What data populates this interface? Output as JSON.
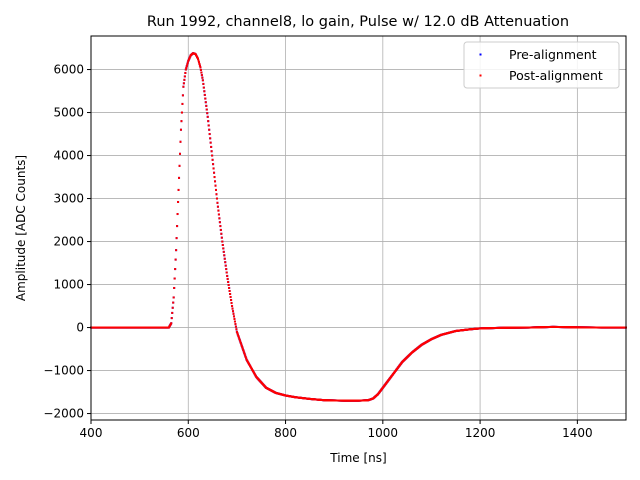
{
  "chart_data": {
    "type": "scatter",
    "title": "Run 1992, channel8, lo gain, Pulse w/ 12.0 dB Attenuation",
    "xlabel": "Time [ns]",
    "ylabel": "Amplitude [ADC Counts]",
    "xlim": [
      400,
      1500
    ],
    "ylim": [
      -2150,
      6780
    ],
    "xticks": [
      400,
      600,
      800,
      1000,
      1200,
      1400
    ],
    "yticks": [
      -2000,
      -1000,
      0,
      1000,
      2000,
      3000,
      4000,
      5000,
      6000
    ],
    "grid": true,
    "legend_position": "top-right",
    "colors": {
      "pre": "#0000ff",
      "post": "#ff0000"
    },
    "series": [
      {
        "name": "Pre-alignment",
        "color": "#0000ff",
        "x": [
          400,
          560,
          565,
          570,
          575,
          580,
          585,
          590,
          595,
          600,
          605,
          610,
          615,
          620,
          625,
          630,
          640,
          650,
          660,
          670,
          680,
          690,
          700,
          720,
          740,
          760,
          780,
          800,
          820,
          850,
          880,
          920,
          950,
          970,
          980,
          990,
          1000,
          1020,
          1040,
          1060,
          1080,
          1100,
          1120,
          1150,
          1180,
          1200,
          1250,
          1300,
          1350,
          1400,
          1450,
          1500
        ],
        "y": [
          0,
          0,
          100,
          700,
          1800,
          3200,
          4600,
          5600,
          6000,
          6200,
          6330,
          6380,
          6360,
          6250,
          6050,
          5750,
          4900,
          3900,
          2900,
          2000,
          1200,
          500,
          -100,
          -750,
          -1150,
          -1400,
          -1520,
          -1580,
          -1620,
          -1660,
          -1690,
          -1700,
          -1700,
          -1690,
          -1650,
          -1550,
          -1400,
          -1100,
          -800,
          -580,
          -400,
          -270,
          -170,
          -80,
          -40,
          -20,
          -5,
          0,
          15,
          5,
          0,
          0
        ]
      },
      {
        "name": "Post-alignment",
        "color": "#ff0000",
        "x": [
          400,
          560,
          565,
          570,
          575,
          580,
          585,
          590,
          595,
          600,
          605,
          610,
          615,
          620,
          625,
          630,
          640,
          650,
          660,
          670,
          680,
          690,
          700,
          720,
          740,
          760,
          780,
          800,
          820,
          850,
          880,
          920,
          950,
          970,
          980,
          990,
          1000,
          1020,
          1040,
          1060,
          1080,
          1100,
          1120,
          1150,
          1180,
          1200,
          1250,
          1300,
          1350,
          1400,
          1450,
          1500
        ],
        "y": [
          0,
          0,
          100,
          700,
          1800,
          3200,
          4600,
          5600,
          6000,
          6200,
          6330,
          6380,
          6360,
          6250,
          6050,
          5750,
          4900,
          3900,
          2900,
          2000,
          1200,
          500,
          -100,
          -750,
          -1150,
          -1400,
          -1520,
          -1580,
          -1620,
          -1660,
          -1690,
          -1700,
          -1700,
          -1690,
          -1650,
          -1550,
          -1400,
          -1100,
          -800,
          -580,
          -400,
          -270,
          -170,
          -80,
          -40,
          -20,
          -5,
          0,
          15,
          5,
          0,
          0
        ]
      }
    ]
  }
}
